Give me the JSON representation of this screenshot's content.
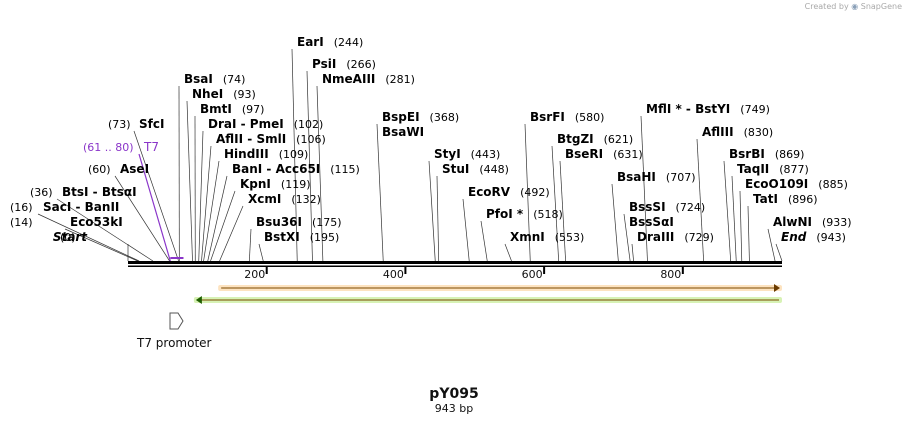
{
  "watermark": {
    "created_by": "Created by",
    "brand": "SnapGene"
  },
  "plasmid": {
    "name": "pY095",
    "length_label": "943 bp",
    "total_bp": 943
  },
  "ruler": {
    "ticks": [
      "200",
      "400",
      "600",
      "800"
    ],
    "tick_values": [
      200,
      400,
      600,
      800
    ]
  },
  "sites": [
    {
      "id": "start",
      "name": "Start",
      "pos": "(0)",
      "bp": 0,
      "italic": true
    },
    {
      "id": "eco53ki",
      "name": "Eco53kI",
      "pos": "(14)",
      "bp": 14
    },
    {
      "id": "saci-banii",
      "name": "SacI  - BanII",
      "pos": "(16)",
      "bp": 16
    },
    {
      "id": "btsi-btsai",
      "name": "BtsI  - BtsαI",
      "pos": "(36)",
      "bp": 36
    },
    {
      "id": "asei",
      "name": "AseI",
      "pos": "(60)",
      "bp": 60
    },
    {
      "id": "t7",
      "name": "T7",
      "pos": "(61 .. 80)",
      "bp": 61,
      "feature": true
    },
    {
      "id": "sfci",
      "name": "SfcI",
      "pos": "(73)",
      "bp": 73
    },
    {
      "id": "bsai",
      "name": "BsaI",
      "pos": "(74)",
      "bp": 74
    },
    {
      "id": "nhei",
      "name": "NheI",
      "pos": "(93)",
      "bp": 93
    },
    {
      "id": "bmti",
      "name": "BmtI",
      "pos": "(97)",
      "bp": 97
    },
    {
      "id": "drai-pmei",
      "name": "DraI  - PmeI",
      "pos": "(102)",
      "bp": 102
    },
    {
      "id": "aflii-smli",
      "name": "AflII  - SmlI",
      "pos": "(106)",
      "bp": 106
    },
    {
      "id": "hindiii",
      "name": "HindIII",
      "pos": "(109)",
      "bp": 109
    },
    {
      "id": "bani-acc65i",
      "name": "BanI  - Acc65I",
      "pos": "(115)",
      "bp": 115
    },
    {
      "id": "kpni",
      "name": "KpnI",
      "pos": "(119)",
      "bp": 119
    },
    {
      "id": "xcmi",
      "name": "XcmI",
      "pos": "(132)",
      "bp": 132
    },
    {
      "id": "bsu36i",
      "name": "Bsu36I",
      "pos": "(175)",
      "bp": 175
    },
    {
      "id": "bstxi",
      "name": "BstXI",
      "pos": "(195)",
      "bp": 195
    },
    {
      "id": "eari",
      "name": "EarI",
      "pos": "(244)",
      "bp": 244
    },
    {
      "id": "psii",
      "name": "PsiI",
      "pos": "(266)",
      "bp": 266
    },
    {
      "id": "nmeaiii",
      "name": "NmeAIII",
      "pos": "(281)",
      "bp": 281
    },
    {
      "id": "bspei",
      "name": "BspEI",
      "pos": "(368)",
      "bp": 368
    },
    {
      "id": "bsawi",
      "name": "BsaWI",
      "pos": "",
      "bp": 368
    },
    {
      "id": "styi",
      "name": "StyI",
      "pos": "(443)",
      "bp": 443
    },
    {
      "id": "stui",
      "name": "StuI",
      "pos": "(448)",
      "bp": 448
    },
    {
      "id": "ecorv",
      "name": "EcoRV",
      "pos": "(492)",
      "bp": 492
    },
    {
      "id": "pfoi",
      "name": "PfoI *",
      "pos": "(518)",
      "bp": 518
    },
    {
      "id": "xmni",
      "name": "XmnI",
      "pos": "(553)",
      "bp": 553
    },
    {
      "id": "bsrfi",
      "name": "BsrFI",
      "pos": "(580)",
      "bp": 580
    },
    {
      "id": "btgzi",
      "name": "BtgZI",
      "pos": "(621)",
      "bp": 621
    },
    {
      "id": "bseri",
      "name": "BseRI",
      "pos": "(631)",
      "bp": 631
    },
    {
      "id": "bsahi",
      "name": "BsaHI",
      "pos": "(707)",
      "bp": 707
    },
    {
      "id": "bsssi",
      "name": "BssSI",
      "pos": "(724)",
      "bp": 724
    },
    {
      "id": "bsssai",
      "name": "BssSαI",
      "pos": "",
      "bp": 724
    },
    {
      "id": "draiii",
      "name": "DraIII",
      "pos": "(729)",
      "bp": 729
    },
    {
      "id": "mfli-bstyi",
      "name": "MflI *  - BstYI",
      "pos": "(749)",
      "bp": 749
    },
    {
      "id": "afliii",
      "name": "AflIII",
      "pos": "(830)",
      "bp": 830
    },
    {
      "id": "bsrbi",
      "name": "BsrBI",
      "pos": "(869)",
      "bp": 869
    },
    {
      "id": "taqii",
      "name": "TaqII",
      "pos": "(877)",
      "bp": 877
    },
    {
      "id": "ecoo109i",
      "name": "EcoO109I",
      "pos": "(885)",
      "bp": 885
    },
    {
      "id": "tati",
      "name": "TatI",
      "pos": "(896)",
      "bp": 896
    },
    {
      "id": "alwni",
      "name": "AlwNI",
      "pos": "(933)",
      "bp": 933
    },
    {
      "id": "end",
      "name": "End",
      "pos": "(943)",
      "bp": 943,
      "italic": true
    }
  ],
  "features": [
    {
      "id": "orange-arrow",
      "direction": "forward",
      "start_bp": 130,
      "end_bp": 943,
      "color": "#e8a23c",
      "fill": "#fde3c0"
    },
    {
      "id": "green-arrow",
      "direction": "reverse",
      "start_bp": 95,
      "end_bp": 943,
      "color": "#7dbb2a",
      "fill": "#d7f2b5"
    }
  ],
  "promoter": {
    "label": "T7 promoter"
  },
  "colors": {
    "feature_purple": "#8a35c9",
    "line": "#000000",
    "tick_gray": "#888888"
  }
}
